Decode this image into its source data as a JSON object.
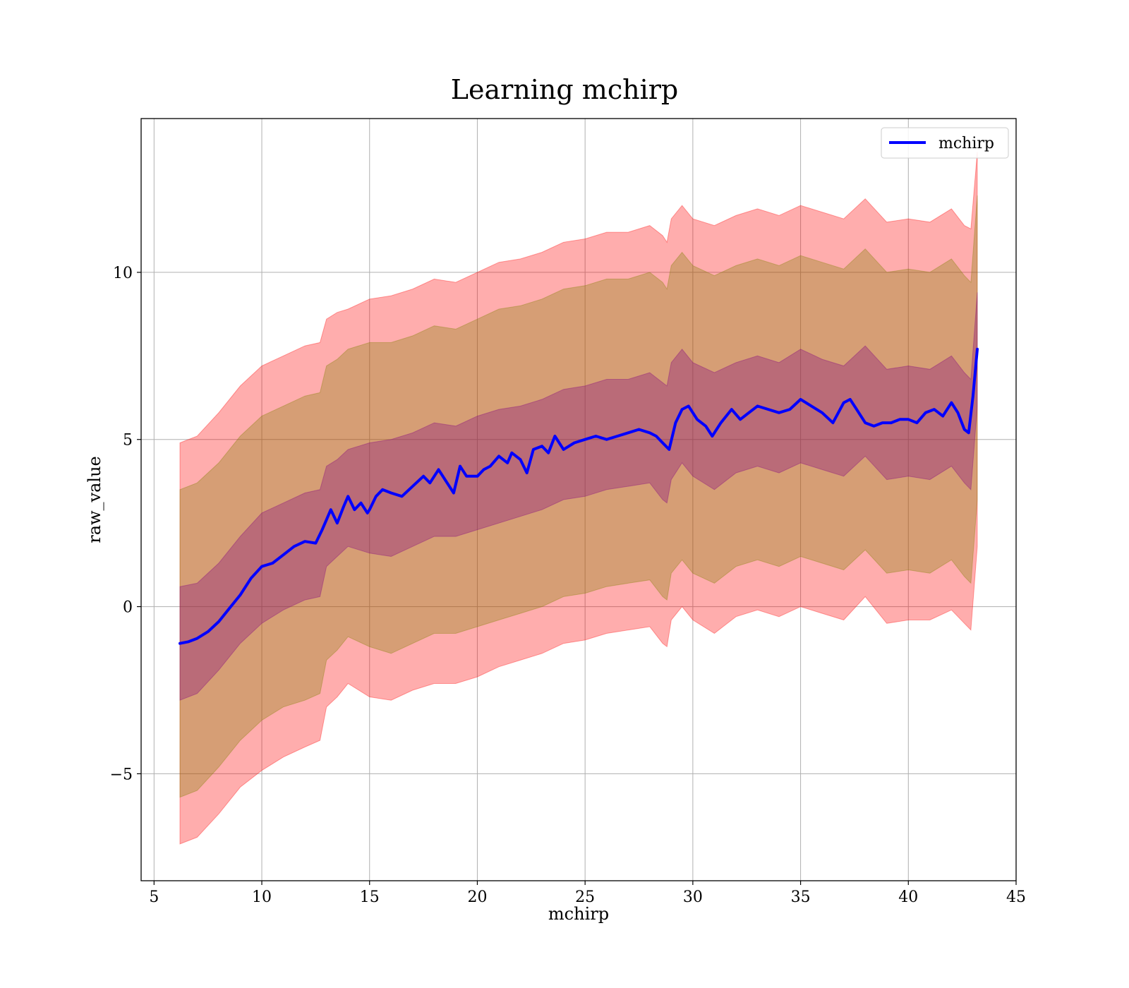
{
  "chart_data": {
    "type": "line",
    "title": "Learning mchirp",
    "xlabel": "mchirp",
    "ylabel": "raw_value",
    "xlim": [
      4.4,
      45
    ],
    "ylim": [
      -8.2,
      14.6
    ],
    "xticks": [
      5,
      10,
      15,
      20,
      25,
      30,
      35,
      40,
      45
    ],
    "yticks": [
      -5,
      0,
      5,
      10
    ],
    "ytick_labels": [
      "−5",
      "0",
      "5",
      "10"
    ],
    "grid": true,
    "legend_position": "top-right",
    "colors": {
      "line": "#0000ff",
      "band_outer": "#ff0000",
      "band_outer_opacity": 0.32,
      "band_middle": "#808000",
      "band_middle_opacity": 0.32,
      "band_inner": "#800080",
      "band_inner_opacity": 0.32,
      "grid": "#b0b0b0"
    },
    "bands": [
      {
        "name": "outer",
        "x": [
          6.2,
          7.0,
          8.0,
          9.0,
          10.0,
          11.0,
          12.0,
          12.7,
          13.0,
          13.5,
          14.0,
          15.0,
          16.0,
          17.0,
          18.0,
          19.0,
          20.0,
          21.0,
          22.0,
          23.0,
          24.0,
          25.0,
          26.0,
          27.0,
          28.0,
          28.6,
          28.8,
          29.0,
          29.5,
          30.0,
          31.0,
          32.0,
          33.0,
          34.0,
          35.0,
          36.0,
          37.0,
          38.0,
          39.0,
          40.0,
          41.0,
          42.0,
          42.6,
          42.9,
          43.2
        ],
        "upper": [
          4.9,
          5.1,
          5.8,
          6.6,
          7.2,
          7.5,
          7.8,
          7.9,
          8.6,
          8.8,
          8.9,
          9.2,
          9.3,
          9.5,
          9.8,
          9.7,
          10.0,
          10.3,
          10.4,
          10.6,
          10.9,
          11.0,
          11.2,
          11.2,
          11.4,
          11.1,
          10.9,
          11.6,
          12.0,
          11.6,
          11.4,
          11.7,
          11.9,
          11.7,
          12.0,
          11.8,
          11.6,
          12.2,
          11.5,
          11.6,
          11.5,
          11.9,
          11.4,
          11.3,
          13.6
        ],
        "lower": [
          -7.1,
          -6.9,
          -6.2,
          -5.4,
          -4.9,
          -4.5,
          -4.2,
          -4.0,
          -3.0,
          -2.7,
          -2.3,
          -2.7,
          -2.8,
          -2.5,
          -2.3,
          -2.3,
          -2.1,
          -1.8,
          -1.6,
          -1.4,
          -1.1,
          -1.0,
          -0.8,
          -0.7,
          -0.6,
          -1.1,
          -1.2,
          -0.4,
          0.0,
          -0.4,
          -0.8,
          -0.3,
          -0.1,
          -0.3,
          0.0,
          -0.2,
          -0.4,
          0.3,
          -0.5,
          -0.4,
          -0.4,
          -0.1,
          -0.5,
          -0.7,
          1.8
        ]
      },
      {
        "name": "middle",
        "x": [
          6.2,
          7.0,
          8.0,
          9.0,
          10.0,
          11.0,
          12.0,
          12.7,
          13.0,
          13.5,
          14.0,
          15.0,
          16.0,
          17.0,
          18.0,
          19.0,
          20.0,
          21.0,
          22.0,
          23.0,
          24.0,
          25.0,
          26.0,
          27.0,
          28.0,
          28.6,
          28.8,
          29.0,
          29.5,
          30.0,
          31.0,
          32.0,
          33.0,
          34.0,
          35.0,
          36.0,
          37.0,
          38.0,
          39.0,
          40.0,
          41.0,
          42.0,
          42.6,
          42.9,
          43.2
        ],
        "upper": [
          3.5,
          3.7,
          4.3,
          5.1,
          5.7,
          6.0,
          6.3,
          6.4,
          7.2,
          7.4,
          7.7,
          7.9,
          7.9,
          8.1,
          8.4,
          8.3,
          8.6,
          8.9,
          9.0,
          9.2,
          9.5,
          9.6,
          9.8,
          9.8,
          10.0,
          9.7,
          9.5,
          10.2,
          10.6,
          10.2,
          9.9,
          10.2,
          10.4,
          10.2,
          10.5,
          10.3,
          10.1,
          10.7,
          10.0,
          10.1,
          10.0,
          10.4,
          9.9,
          9.7,
          12.3
        ],
        "lower": [
          -5.7,
          -5.5,
          -4.8,
          -4.0,
          -3.4,
          -3.0,
          -2.8,
          -2.6,
          -1.6,
          -1.3,
          -0.9,
          -1.2,
          -1.4,
          -1.1,
          -0.8,
          -0.8,
          -0.6,
          -0.4,
          -0.2,
          0.0,
          0.3,
          0.4,
          0.6,
          0.7,
          0.8,
          0.3,
          0.2,
          1.0,
          1.4,
          1.0,
          0.7,
          1.2,
          1.4,
          1.2,
          1.5,
          1.3,
          1.1,
          1.7,
          1.0,
          1.1,
          1.0,
          1.4,
          0.9,
          0.7,
          3.2
        ]
      },
      {
        "name": "inner",
        "x": [
          6.2,
          7.0,
          8.0,
          9.0,
          10.0,
          11.0,
          12.0,
          12.7,
          13.0,
          13.5,
          14.0,
          15.0,
          16.0,
          17.0,
          18.0,
          19.0,
          20.0,
          21.0,
          22.0,
          23.0,
          24.0,
          25.0,
          26.0,
          27.0,
          28.0,
          28.6,
          28.8,
          29.0,
          29.5,
          30.0,
          31.0,
          32.0,
          33.0,
          34.0,
          35.0,
          36.0,
          37.0,
          38.0,
          39.0,
          40.0,
          41.0,
          42.0,
          42.6,
          42.9,
          43.2
        ],
        "upper": [
          0.6,
          0.7,
          1.3,
          2.1,
          2.8,
          3.1,
          3.4,
          3.5,
          4.2,
          4.4,
          4.7,
          4.9,
          5.0,
          5.2,
          5.5,
          5.4,
          5.7,
          5.9,
          6.0,
          6.2,
          6.5,
          6.6,
          6.8,
          6.8,
          7.0,
          6.7,
          6.6,
          7.3,
          7.7,
          7.3,
          7.0,
          7.3,
          7.5,
          7.3,
          7.7,
          7.4,
          7.2,
          7.8,
          7.1,
          7.2,
          7.1,
          7.5,
          7.0,
          6.8,
          9.4
        ],
        "lower": [
          -2.8,
          -2.6,
          -1.9,
          -1.1,
          -0.5,
          -0.1,
          0.2,
          0.3,
          1.2,
          1.5,
          1.8,
          1.6,
          1.5,
          1.8,
          2.1,
          2.1,
          2.3,
          2.5,
          2.7,
          2.9,
          3.2,
          3.3,
          3.5,
          3.6,
          3.7,
          3.2,
          3.1,
          3.8,
          4.3,
          3.9,
          3.5,
          4.0,
          4.2,
          4.0,
          4.3,
          4.1,
          3.9,
          4.5,
          3.8,
          3.9,
          3.8,
          4.2,
          3.7,
          3.5,
          6.0
        ]
      }
    ],
    "series": [
      {
        "name": "mchirp",
        "x": [
          6.2,
          6.6,
          7.0,
          7.5,
          8.0,
          8.5,
          9.0,
          9.5,
          10.0,
          10.5,
          11.0,
          11.5,
          12.0,
          12.5,
          12.8,
          13.0,
          13.2,
          13.5,
          13.8,
          14.0,
          14.3,
          14.6,
          14.9,
          15.0,
          15.3,
          15.6,
          16.0,
          16.5,
          17.0,
          17.5,
          17.8,
          18.2,
          18.6,
          18.9,
          19.2,
          19.5,
          20.0,
          20.3,
          20.6,
          21.0,
          21.4,
          21.6,
          22.0,
          22.3,
          22.6,
          23.0,
          23.3,
          23.6,
          24.0,
          24.5,
          25.0,
          25.5,
          26.0,
          26.5,
          27.0,
          27.5,
          28.0,
          28.3,
          28.6,
          28.9,
          29.2,
          29.5,
          29.8,
          30.2,
          30.6,
          30.9,
          31.3,
          31.8,
          32.2,
          32.6,
          33.0,
          33.5,
          34.0,
          34.5,
          35.0,
          35.5,
          36.0,
          36.5,
          37.0,
          37.3,
          37.6,
          38.0,
          38.4,
          38.8,
          39.2,
          39.6,
          40.0,
          40.4,
          40.8,
          41.2,
          41.6,
          42.0,
          42.3,
          42.6,
          42.8,
          43.0,
          43.2
        ],
        "values": [
          -1.1,
          -1.05,
          -0.95,
          -0.75,
          -0.45,
          -0.05,
          0.35,
          0.85,
          1.2,
          1.3,
          1.55,
          1.8,
          1.95,
          1.9,
          2.3,
          2.6,
          2.9,
          2.5,
          3.0,
          3.3,
          2.9,
          3.1,
          2.8,
          2.9,
          3.3,
          3.5,
          3.4,
          3.3,
          3.6,
          3.9,
          3.7,
          4.1,
          3.7,
          3.4,
          4.2,
          3.9,
          3.9,
          4.1,
          4.2,
          4.5,
          4.3,
          4.6,
          4.4,
          4.0,
          4.7,
          4.8,
          4.6,
          5.1,
          4.7,
          4.9,
          5.0,
          5.1,
          5.0,
          5.1,
          5.2,
          5.3,
          5.2,
          5.1,
          4.9,
          4.7,
          5.5,
          5.9,
          6.0,
          5.6,
          5.4,
          5.1,
          5.5,
          5.9,
          5.6,
          5.8,
          6.0,
          5.9,
          5.8,
          5.9,
          6.2,
          6.0,
          5.8,
          5.5,
          6.1,
          6.2,
          5.9,
          5.5,
          5.4,
          5.5,
          5.5,
          5.6,
          5.6,
          5.5,
          5.8,
          5.9,
          5.7,
          6.1,
          5.8,
          5.3,
          5.2,
          6.3,
          7.7
        ]
      }
    ]
  }
}
